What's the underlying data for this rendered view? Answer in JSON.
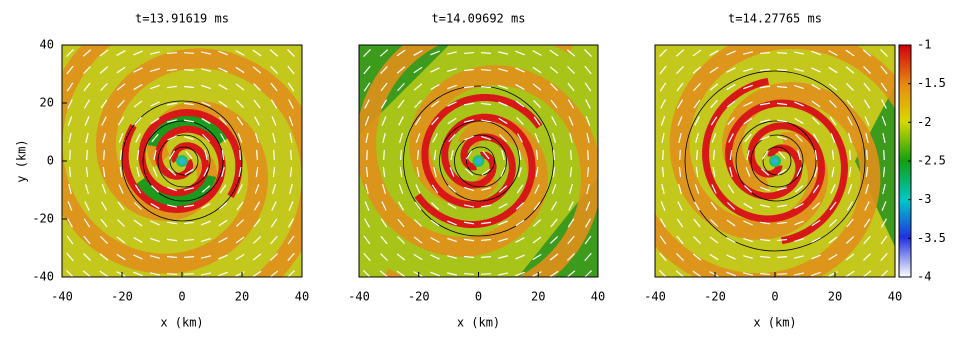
{
  "chart_data": [
    {
      "type": "heatmap",
      "title": "t=13.91619 ms",
      "xlabel": "x (km)",
      "ylabel": "y (km)",
      "xlim": [
        -40,
        40
      ],
      "ylim": [
        -40,
        40
      ],
      "xticks": [
        -40,
        -20,
        0,
        20,
        40
      ],
      "yticks": [
        -40,
        -20,
        0,
        20,
        40
      ]
    },
    {
      "type": "heatmap",
      "title": "t=14.09692 ms",
      "xlabel": "x (km)",
      "xlim": [
        -40,
        40
      ],
      "ylim": [
        -40,
        40
      ],
      "xticks": [
        -40,
        -20,
        0,
        20,
        40
      ]
    },
    {
      "type": "heatmap",
      "title": "t=14.27765 ms",
      "xlabel": "x (km)",
      "xlim": [
        -40,
        40
      ],
      "ylim": [
        -40,
        40
      ],
      "xticks": [
        -40,
        -20,
        0,
        20,
        40
      ],
      "colorbar": {
        "lim": [
          -4,
          -1
        ],
        "ticks": [
          -4,
          -3.5,
          -3,
          -2.5,
          -2,
          -1.5,
          -1
        ]
      }
    }
  ]
}
